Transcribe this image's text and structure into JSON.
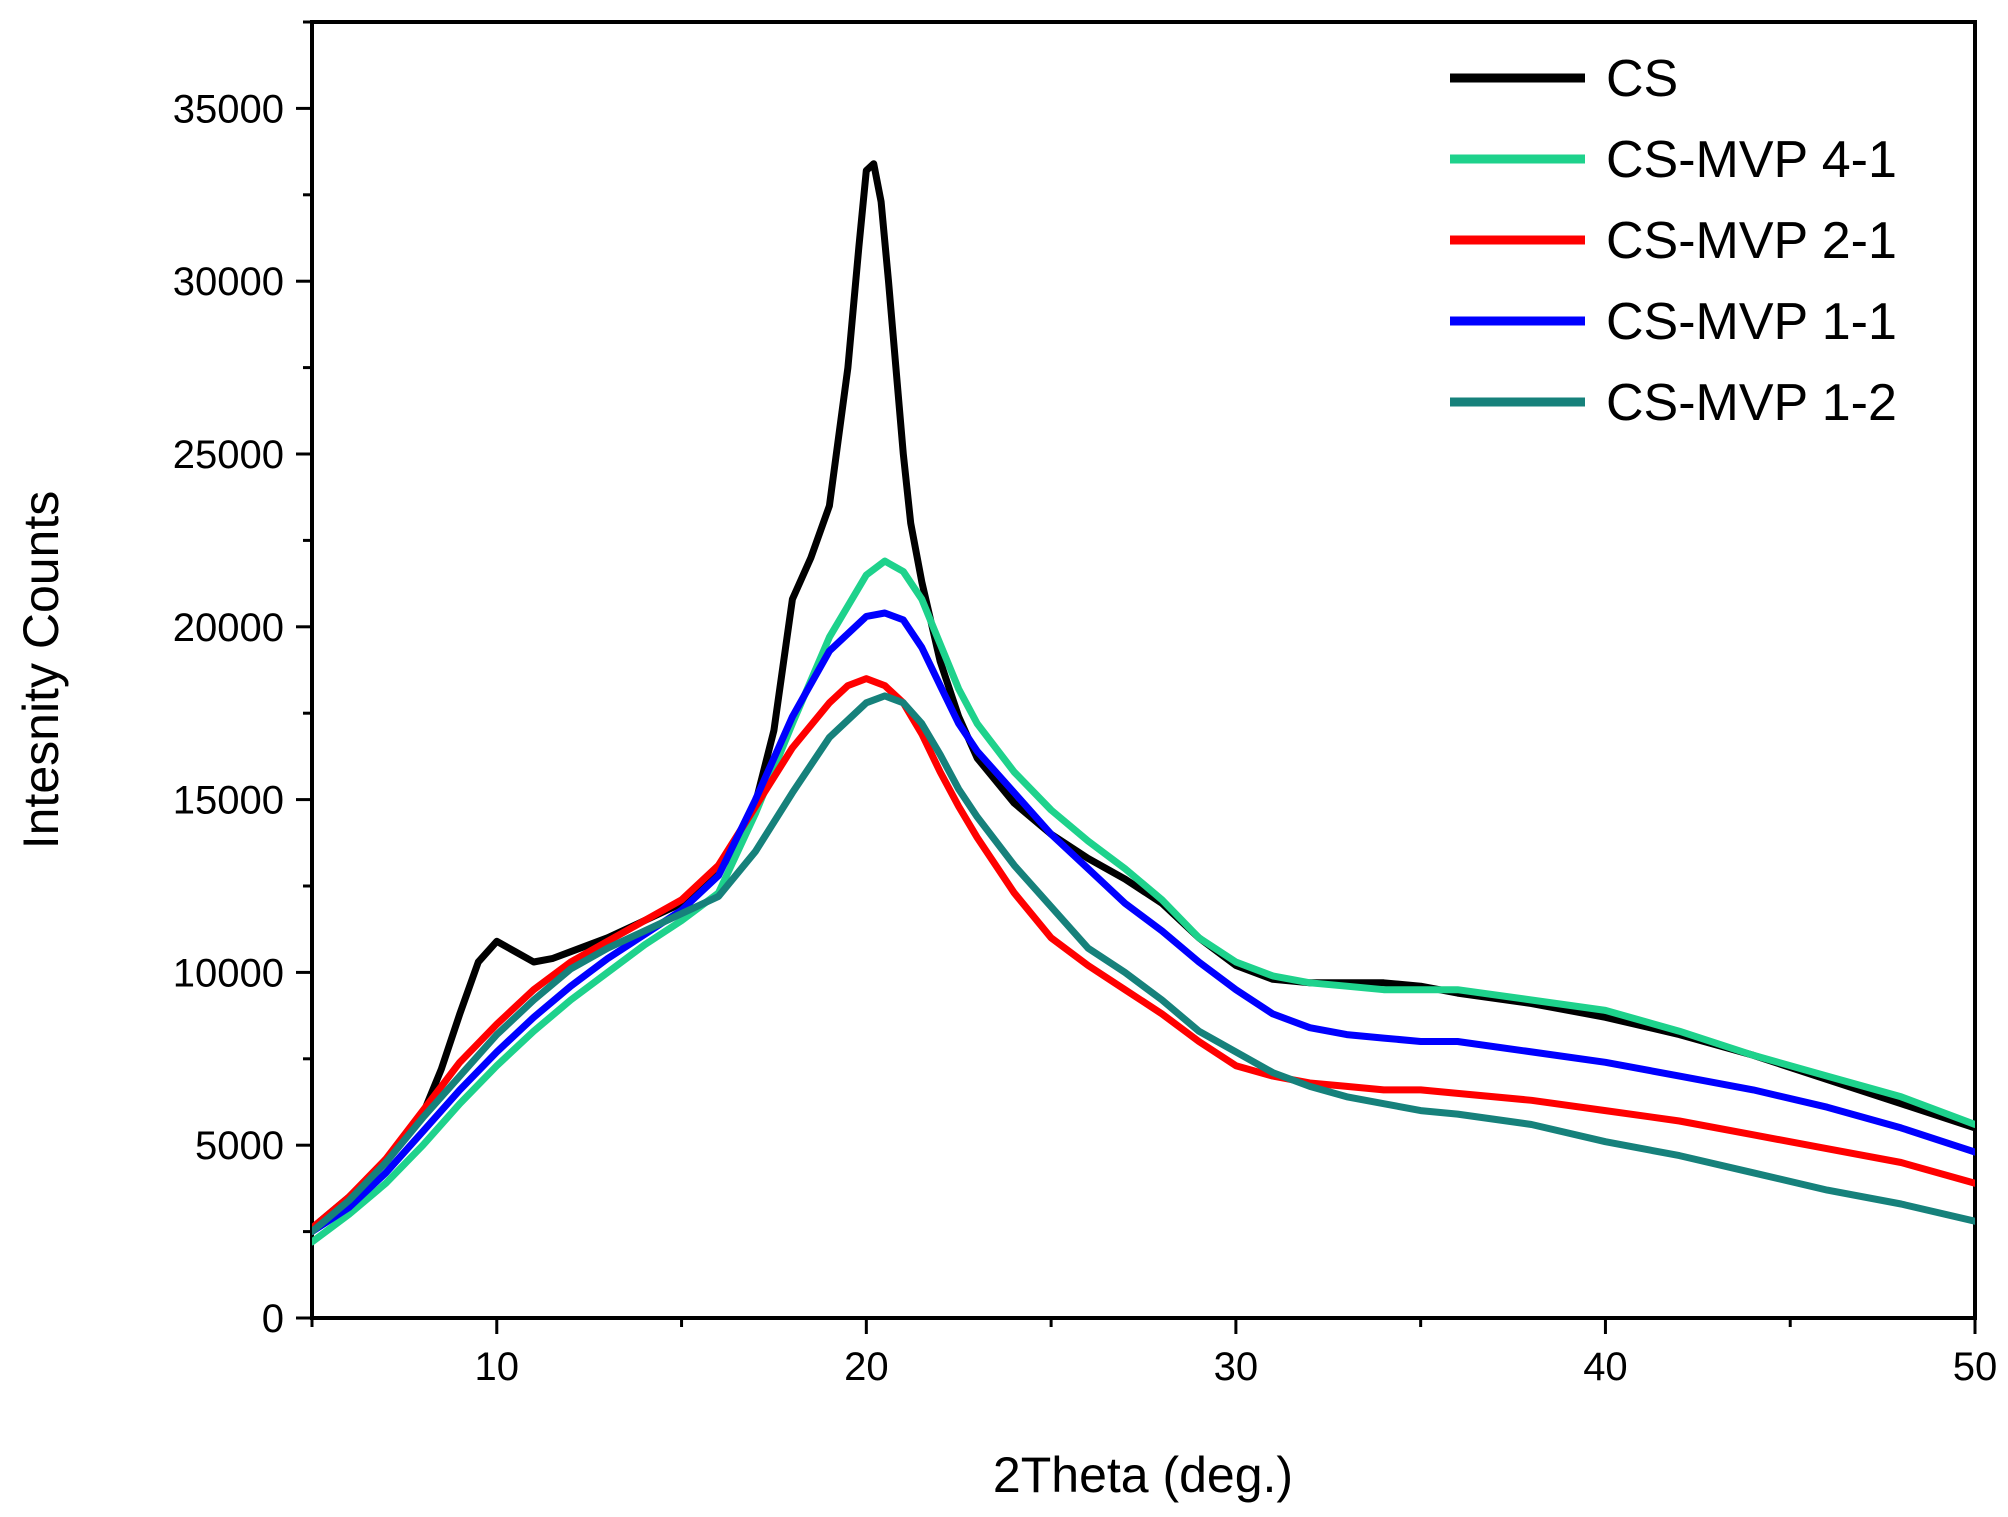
{
  "chart_data": {
    "type": "line",
    "title": "",
    "xlabel": "2Theta (deg.)",
    "ylabel": "Intesnity Counts",
    "xlim": [
      5,
      50
    ],
    "ylim": [
      0,
      37500
    ],
    "xticks": [
      10,
      20,
      30,
      40,
      50
    ],
    "yticks": [
      0,
      5000,
      10000,
      15000,
      20000,
      25000,
      30000,
      35000
    ],
    "legend_position": "top-right",
    "series": [
      {
        "name": "CS",
        "color": "#000000",
        "x": [
          5,
          6,
          7,
          8,
          8.5,
          9,
          9.5,
          10,
          10.5,
          11,
          11.5,
          12,
          13,
          14,
          15,
          16,
          16.5,
          17,
          17.5,
          18,
          18.5,
          19,
          19.5,
          19.8,
          20,
          20.2,
          20.4,
          20.6,
          20.8,
          21,
          21.2,
          21.5,
          22,
          22.5,
          23,
          24,
          25,
          26,
          27,
          28,
          29,
          30,
          31,
          32,
          33,
          34,
          35,
          36,
          38,
          40,
          42,
          44,
          46,
          48,
          50
        ],
        "values": [
          2600,
          3500,
          4500,
          5900,
          7200,
          8800,
          10300,
          10900,
          10600,
          10300,
          10400,
          10600,
          11000,
          11500,
          12000,
          12900,
          13700,
          14900,
          17000,
          20800,
          22000,
          23500,
          27500,
          31000,
          33200,
          33400,
          32300,
          30000,
          27500,
          25000,
          23000,
          21300,
          19000,
          17400,
          16200,
          14900,
          14000,
          13300,
          12700,
          12000,
          11000,
          10200,
          9800,
          9700,
          9700,
          9700,
          9600,
          9400,
          9100,
          8700,
          8200,
          7600,
          6900,
          6200,
          5500
        ]
      },
      {
        "name": "CS-MVP 4-1",
        "color": "#1ed28c",
        "x": [
          5,
          6,
          7,
          8,
          9,
          10,
          11,
          12,
          13,
          14,
          15,
          16,
          17,
          18,
          19,
          20,
          20.5,
          21,
          21.5,
          22,
          22.5,
          23,
          24,
          25,
          26,
          27,
          28,
          29,
          30,
          31,
          32,
          33,
          34,
          35,
          36,
          38,
          40,
          42,
          44,
          46,
          48,
          50
        ],
        "values": [
          2200,
          3000,
          3900,
          5000,
          6200,
          7300,
          8300,
          9200,
          10000,
          10800,
          11500,
          12300,
          14600,
          17200,
          19700,
          21500,
          21900,
          21600,
          20800,
          19500,
          18200,
          17200,
          15800,
          14700,
          13800,
          13000,
          12100,
          11000,
          10300,
          9900,
          9700,
          9600,
          9500,
          9500,
          9500,
          9200,
          8900,
          8300,
          7600,
          7000,
          6400,
          5600
        ]
      },
      {
        "name": "CS-MVP 2-1",
        "color": "#ff0000",
        "x": [
          5,
          6,
          7,
          8,
          9,
          10,
          11,
          12,
          13,
          14,
          15,
          16,
          17,
          18,
          19,
          19.5,
          20,
          20.5,
          21,
          21.5,
          22,
          22.5,
          23,
          24,
          25,
          26,
          27,
          28,
          29,
          30,
          31,
          32,
          33,
          34,
          35,
          36,
          38,
          40,
          42,
          44,
          46,
          48,
          50
        ],
        "values": [
          2600,
          3500,
          4600,
          6000,
          7400,
          8500,
          9500,
          10300,
          10900,
          11500,
          12100,
          13100,
          14800,
          16500,
          17800,
          18300,
          18500,
          18300,
          17800,
          16900,
          15800,
          14800,
          13900,
          12300,
          11000,
          10200,
          9500,
          8800,
          8000,
          7300,
          7000,
          6800,
          6700,
          6600,
          6600,
          6500,
          6300,
          6000,
          5700,
          5300,
          4900,
          4500,
          3900
        ]
      },
      {
        "name": "CS-MVP 1-1",
        "color": "#0000ff",
        "x": [
          5,
          6,
          7,
          8,
          9,
          10,
          11,
          12,
          13,
          14,
          15,
          16,
          17,
          18,
          19,
          20,
          20.5,
          21,
          21.5,
          22,
          22.5,
          23,
          24,
          25,
          26,
          27,
          28,
          29,
          30,
          31,
          32,
          33,
          34,
          35,
          36,
          38,
          40,
          42,
          44,
          46,
          48,
          50
        ],
        "values": [
          2500,
          3200,
          4200,
          5400,
          6600,
          7700,
          8700,
          9600,
          10400,
          11100,
          11800,
          12800,
          15000,
          17400,
          19300,
          20300,
          20400,
          20200,
          19400,
          18300,
          17200,
          16400,
          15200,
          14000,
          13000,
          12000,
          11200,
          10300,
          9500,
          8800,
          8400,
          8200,
          8100,
          8000,
          8000,
          7700,
          7400,
          7000,
          6600,
          6100,
          5500,
          4800
        ]
      },
      {
        "name": "CS-MVP 1-2",
        "color": "#16817b",
        "x": [
          5,
          6,
          7,
          8,
          9,
          10,
          11,
          12,
          13,
          14,
          15,
          16,
          17,
          18,
          19,
          20,
          20.5,
          21,
          21.5,
          22,
          22.5,
          23,
          24,
          25,
          26,
          27,
          28,
          29,
          30,
          31,
          32,
          33,
          34,
          35,
          36,
          38,
          40,
          42,
          44,
          46,
          48,
          50
        ],
        "values": [
          2500,
          3400,
          4500,
          5800,
          7000,
          8200,
          9200,
          10100,
          10700,
          11200,
          11700,
          12200,
          13500,
          15200,
          16800,
          17800,
          18000,
          17800,
          17200,
          16300,
          15300,
          14500,
          13100,
          11900,
          10700,
          10000,
          9200,
          8300,
          7700,
          7100,
          6700,
          6400,
          6200,
          6000,
          5900,
          5600,
          5100,
          4700,
          4200,
          3700,
          3300,
          2800
        ]
      }
    ]
  }
}
